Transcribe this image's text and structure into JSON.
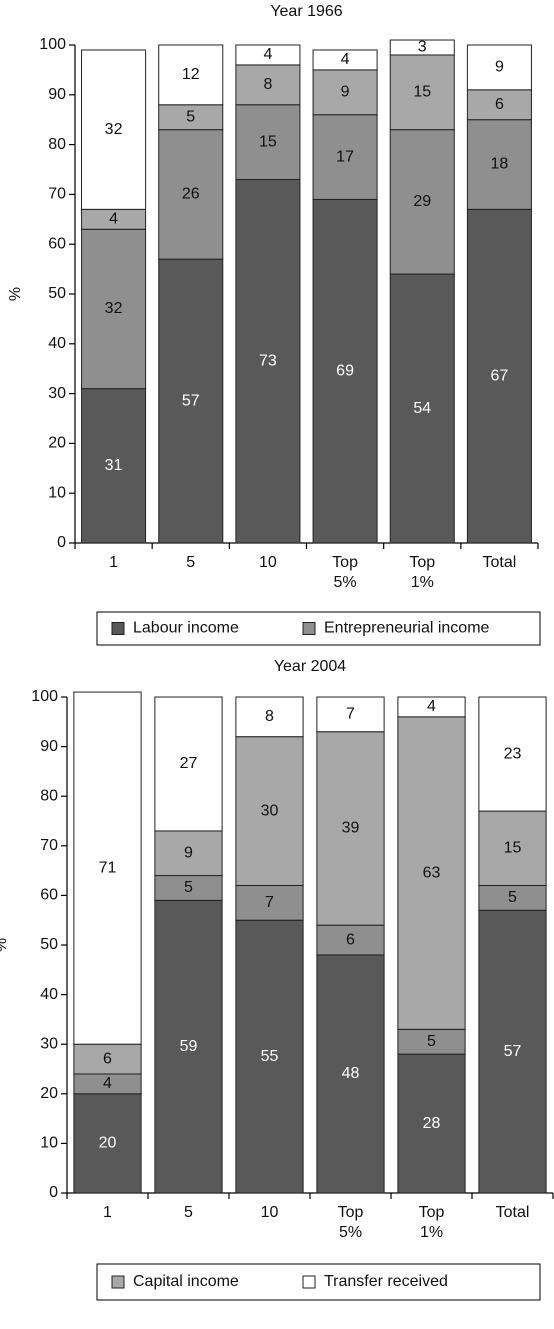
{
  "chart_data": [
    {
      "type": "stacked_bar",
      "title": "Year 1966",
      "y_label": "%",
      "categories": [
        "1",
        "5",
        "10",
        "Top 5%",
        "Top 1%",
        "Total"
      ],
      "series": [
        {
          "name": "Labour income",
          "color": "#595959",
          "values": [
            31,
            57,
            73,
            69,
            54,
            67
          ]
        },
        {
          "name": "Entrepreneurial income",
          "color": "#8f8f8f",
          "values": [
            32,
            26,
            15,
            17,
            29,
            18
          ]
        },
        {
          "name": "Capital income",
          "color": "#a8a8a8",
          "values": [
            4,
            5,
            8,
            9,
            15,
            6
          ]
        },
        {
          "name": "Transfer received",
          "color": "#ffffff",
          "values": [
            32,
            12,
            4,
            4,
            3,
            9
          ]
        }
      ],
      "legend_series": [
        0,
        1
      ],
      "ylim": [
        0,
        100
      ],
      "yticks": [
        0,
        10,
        20,
        30,
        40,
        50,
        60,
        70,
        80,
        90,
        100
      ]
    },
    {
      "type": "stacked_bar",
      "title": "Year 2004",
      "y_label": "%",
      "categories": [
        "1",
        "5",
        "10",
        "Top 5%",
        "Top 1%",
        "Total"
      ],
      "series": [
        {
          "name": "Labour income",
          "color": "#595959",
          "values": [
            20,
            59,
            55,
            48,
            28,
            57
          ]
        },
        {
          "name": "Entrepreneurial income",
          "color": "#8f8f8f",
          "values": [
            4,
            5,
            7,
            6,
            5,
            5
          ]
        },
        {
          "name": "Capital income",
          "color": "#a8a8a8",
          "values": [
            6,
            9,
            30,
            39,
            63,
            15
          ]
        },
        {
          "name": "Transfer received",
          "color": "#ffffff",
          "values": [
            71,
            27,
            8,
            7,
            4,
            23
          ]
        }
      ],
      "legend_series": [
        2,
        3
      ],
      "ylim": [
        0,
        100
      ],
      "yticks": [
        0,
        10,
        20,
        30,
        40,
        50,
        60,
        70,
        80,
        90,
        100
      ]
    }
  ]
}
